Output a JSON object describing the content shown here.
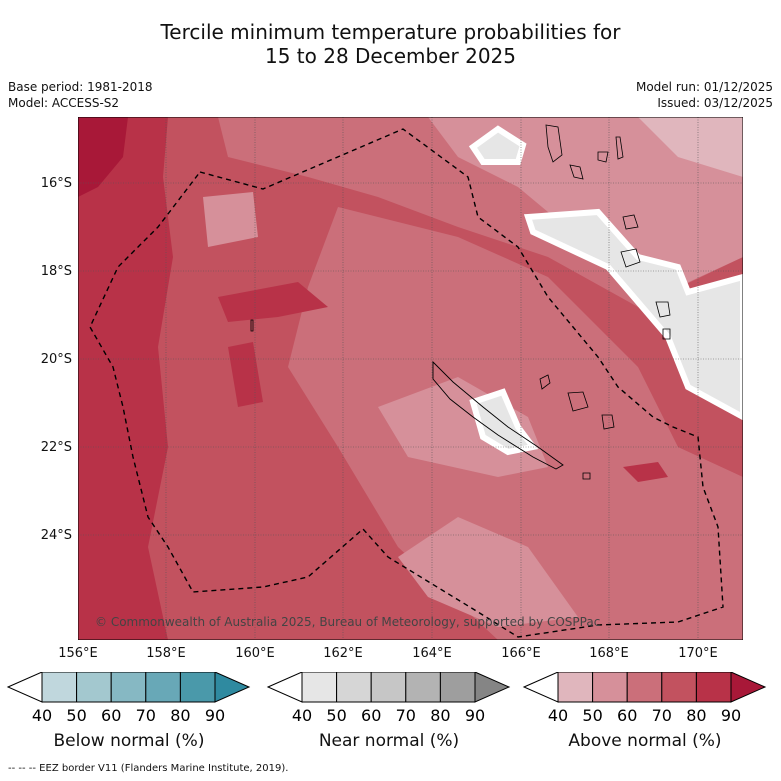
{
  "title_line1": "Tercile minimum temperature probabilities for",
  "title_line2": "15 to 28 December 2025",
  "meta_left": [
    "Base period: 1981-2018",
    "Model: ACCESS-S2"
  ],
  "meta_right": [
    "Model run: 01/12/2025",
    "Issued: 03/12/2025"
  ],
  "lat_labels": [
    "16°S",
    "18°S",
    "20°S",
    "22°S",
    "24°S"
  ],
  "lon_labels": [
    "156°E",
    "158°E",
    "160°E",
    "162°E",
    "164°E",
    "166°E",
    "168°E",
    "170°E"
  ],
  "copyright": "© Commonwealth of Australia 2025, Bureau of Meteorology, supported by COSPPac",
  "colorbars": [
    {
      "name": "Below normal (%)",
      "ticks": [
        "40",
        "50",
        "60",
        "70",
        "80",
        "90"
      ],
      "colors": [
        "#ffffff",
        "#c0d7dd",
        "#a3c8cf",
        "#86b8c3",
        "#68a8b7",
        "#4a99aa",
        "#2f8aa0"
      ]
    },
    {
      "name": "Near normal (%)",
      "ticks": [
        "40",
        "50",
        "60",
        "70",
        "80",
        "90"
      ],
      "colors": [
        "#ffffff",
        "#e6e6e6",
        "#d6d6d6",
        "#c6c6c6",
        "#b3b3b3",
        "#9e9e9e",
        "#858585"
      ]
    },
    {
      "name": "Above normal (%)",
      "ticks": [
        "40",
        "50",
        "60",
        "70",
        "80",
        "90"
      ],
      "colors": [
        "#ffffff",
        "#e0b6bd",
        "#d6909a",
        "#cb6f7a",
        "#c2525f",
        "#b83248",
        "#a81838"
      ]
    }
  ],
  "footer": "-- -- -- EEZ border V11 (Flanders Marine Institute, 2019)."
}
